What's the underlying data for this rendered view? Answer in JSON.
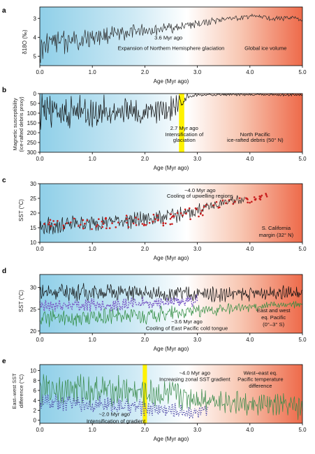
{
  "chart_data": [
    {
      "panel": "a",
      "type": "line",
      "title": "",
      "xlabel": "Age (Myr ago)",
      "ylabel": "δ18O (‰)",
      "xlim": [
        0,
        5
      ],
      "ylim": [
        5.5,
        2.4
      ],
      "x_ticks": [
        "0.0",
        "1.0",
        "2.0",
        "3.0",
        "4.0",
        "5.0"
      ],
      "y_ticks": [
        "3",
        "4",
        "5"
      ],
      "y_tick_values": [
        3,
        4,
        5
      ],
      "annotations": [
        {
          "text": "3.6 Myr ago",
          "x": 2.45,
          "y": 4.0
        },
        {
          "text": "Expansion of Northern Hemisphere glaciation",
          "x": 2.5,
          "y": 4.55
        },
        {
          "text": "Global ice volume",
          "x": 4.3,
          "y": 4.55
        }
      ],
      "series": [
        {
          "color": "#2a2a2a",
          "x": [
            0,
            0.2,
            0.4,
            0.6,
            0.8,
            1.0,
            1.2,
            1.4,
            1.6,
            1.8,
            2.0,
            2.2,
            2.4,
            2.6,
            2.8,
            3.0,
            3.2,
            3.4,
            3.6,
            3.8,
            4.0,
            4.2,
            4.4,
            4.6,
            4.8,
            5.0
          ],
          "y": [
            4.7,
            4.3,
            4.2,
            4.2,
            4.1,
            4.0,
            3.9,
            3.9,
            3.8,
            3.7,
            3.6,
            3.6,
            3.5,
            3.5,
            3.4,
            3.3,
            3.2,
            3.1,
            3.0,
            3.0,
            2.9,
            2.9,
            3.0,
            3.0,
            3.0,
            3.1
          ],
          "amplitude": [
            0.55,
            0.55,
            0.5,
            0.5,
            0.45,
            0.4,
            0.35,
            0.35,
            0.32,
            0.3,
            0.28,
            0.26,
            0.25,
            0.22,
            0.2,
            0.18,
            0.16,
            0.14,
            0.12,
            0.1,
            0.1,
            0.1,
            0.1,
            0.1,
            0.1,
            0.1
          ]
        }
      ]
    },
    {
      "panel": "b",
      "type": "line",
      "title": "",
      "xlabel": "Age (Myr ago)",
      "ylabel": "Magnetic susceptibility (ice-rafted debris proxy)",
      "xlim": [
        0,
        5
      ],
      "ylim": [
        300,
        0
      ],
      "x_ticks": [
        "0.0",
        "1.0",
        "2.0",
        "3.0",
        "4.0",
        "5.0"
      ],
      "y_ticks": [
        "0",
        "50",
        "100",
        "150",
        "200",
        "250",
        "300"
      ],
      "y_tick_values": [
        0,
        50,
        100,
        150,
        200,
        250,
        300
      ],
      "highlight_band": [
        2.65,
        2.75
      ],
      "annotations": [
        {
          "text": "2.7 Myr ago",
          "x": 2.75,
          "y": 175
        },
        {
          "text": "Intensification of",
          "x": 2.75,
          "y": 207
        },
        {
          "text": "glaciation",
          "x": 2.75,
          "y": 236
        },
        {
          "text": "North Pacific",
          "x": 4.1,
          "y": 207
        },
        {
          "text": "ice-rafted debris (50° N)",
          "x": 4.1,
          "y": 236
        }
      ],
      "series": [
        {
          "color": "#111111",
          "x": [
            0,
            0.25,
            0.5,
            0.75,
            1.0,
            1.25,
            1.5,
            1.75,
            2.0,
            2.25,
            2.5,
            2.7,
            2.8,
            3.0,
            3.5,
            4.0,
            4.5,
            5.0
          ],
          "y": [
            100,
            90,
            110,
            95,
            105,
            100,
            95,
            100,
            100,
            85,
            75,
            45,
            12,
            8,
            6,
            6,
            6,
            6
          ],
          "amplitude": [
            80,
            80,
            80,
            75,
            75,
            70,
            70,
            65,
            65,
            60,
            55,
            40,
            10,
            6,
            5,
            5,
            5,
            5
          ]
        }
      ]
    },
    {
      "panel": "c",
      "type": "line",
      "title": "",
      "xlabel": "Age (Myr ago)",
      "ylabel": "SST (°C)",
      "xlim": [
        0,
        5
      ],
      "ylim": [
        10,
        30
      ],
      "x_ticks": [
        "0.0",
        "1.0",
        "2.0",
        "3.0",
        "4.0",
        "5.0"
      ],
      "y_ticks": [
        "10",
        "15",
        "20",
        "25",
        "30"
      ],
      "y_tick_values": [
        10,
        15,
        20,
        25,
        30
      ],
      "annotations": [
        {
          "text": "~4.0 Myr ago",
          "x": 3.05,
          "y": 27.9
        },
        {
          "text": "Cooling of upwelling regions",
          "x": 3.05,
          "y": 25.9
        },
        {
          "text": "S. California",
          "x": 4.5,
          "y": 15.0
        },
        {
          "text": "margin (32° N)",
          "x": 4.5,
          "y": 12.6
        }
      ],
      "series": [
        {
          "color": "#1a1a1a",
          "x": [
            0,
            0.25,
            0.5,
            0.75,
            1.0,
            1.25,
            1.5,
            1.75,
            2.0,
            2.25,
            2.5,
            2.75,
            3.0,
            3.25,
            3.5,
            3.75,
            3.9
          ],
          "y": [
            15,
            15.5,
            16,
            16.5,
            16.5,
            17,
            17.5,
            17.5,
            18,
            18.5,
            19,
            19.5,
            21,
            22.5,
            23.5,
            24.5,
            25
          ],
          "amplitude": [
            2.5,
            2.5,
            2.5,
            2.3,
            2.3,
            2.2,
            2.2,
            2.2,
            2.0,
            2.0,
            2.0,
            2.0,
            1.8,
            1.5,
            1.5,
            1.3,
            1.2
          ]
        },
        {
          "color": "#c81e1e",
          "style": "points",
          "x": [
            0,
            0.5,
            1.0,
            1.5,
            2.0,
            2.5,
            3.0,
            3.5,
            4.0,
            4.1,
            4.2,
            4.3,
            4.35
          ],
          "y": [
            15.5,
            16,
            16.5,
            17,
            17.5,
            18,
            20.5,
            23,
            24.5,
            25,
            25.5,
            26,
            25.5
          ],
          "amplitude": [
            2,
            2,
            2,
            2,
            2,
            2.2,
            2,
            1.5,
            1.0,
            1.0,
            1.0,
            1.0,
            1.0
          ]
        }
      ]
    },
    {
      "panel": "d",
      "type": "line",
      "title": "",
      "xlabel": "Age (Myr ago)",
      "ylabel": "SST (°C)",
      "xlim": [
        0,
        5
      ],
      "ylim": [
        19.5,
        33
      ],
      "x_ticks": [
        "0.0",
        "1.0",
        "2.0",
        "3.0",
        "4.0",
        "5.0"
      ],
      "y_ticks": [
        "20",
        "25",
        "30"
      ],
      "y_tick_values": [
        20,
        25,
        30
      ],
      "annotations": [
        {
          "text": "~3.6 Myr ago",
          "x": 2.8,
          "y": 22.2
        },
        {
          "text": "Cooling of East Pacific cold tongue",
          "x": 2.8,
          "y": 20.7
        },
        {
          "text": "East and west",
          "x": 4.45,
          "y": 24.8
        },
        {
          "text": "eq. Pacific",
          "x": 4.45,
          "y": 23.2
        },
        {
          "text": "(0°–3° S)",
          "x": 4.45,
          "y": 21.6
        }
      ],
      "series": [
        {
          "color": "#111111",
          "x": [
            0,
            0.5,
            1.0,
            1.5,
            2.0,
            2.5,
            3.0,
            3.5,
            4.0,
            4.5,
            5.0
          ],
          "y": [
            29,
            29,
            29,
            29,
            28.5,
            28.5,
            28.5,
            28.5,
            28.5,
            29,
            28.5
          ],
          "amplitude": [
            1.6,
            1.6,
            1.6,
            1.5,
            1.5,
            1.5,
            1.4,
            1.4,
            1.3,
            1.3,
            1.3
          ]
        },
        {
          "color": "#7b5cc7",
          "style": "dashed",
          "x": [
            0,
            0.5,
            1.0,
            1.5,
            2.0,
            2.5,
            3.0
          ],
          "y": [
            25.5,
            26,
            26,
            26,
            26.5,
            26.5,
            27
          ],
          "amplitude": [
            1.2,
            1.2,
            1.2,
            1.1,
            1.1,
            1.0,
            1.0
          ]
        },
        {
          "color": "#2e8b3e",
          "x": [
            0,
            0.5,
            1.0,
            1.5,
            2.0,
            2.5,
            3.0,
            3.5,
            4.0,
            4.5,
            5.0
          ],
          "y": [
            23,
            23,
            23,
            23.5,
            23.5,
            24,
            24.5,
            25,
            25.5,
            26,
            26
          ],
          "amplitude": [
            1.6,
            1.6,
            1.6,
            1.5,
            1.5,
            1.4,
            1.2,
            1.0,
            0.8,
            0.8,
            0.8
          ]
        }
      ]
    },
    {
      "panel": "e",
      "type": "line",
      "title": "",
      "xlabel": "Age (Myr ago)",
      "ylabel": "East–west SST difference (°C)",
      "xlim": [
        0,
        5
      ],
      "ylim": [
        -0.6,
        11.2
      ],
      "x_ticks": [
        "0.0",
        "1.0",
        "2.0",
        "3.0",
        "4.0",
        "5.0"
      ],
      "y_ticks": [
        "0",
        "2",
        "4",
        "6",
        "8",
        "10"
      ],
      "y_tick_values": [
        0,
        2,
        4,
        6,
        8,
        10
      ],
      "highlight_band": [
        1.96,
        2.04
      ],
      "annotations": [
        {
          "text": "~4.0 Myr ago",
          "x": 2.95,
          "y": 9.6
        },
        {
          "text": "Increasing zonal SST gradient",
          "x": 2.95,
          "y": 8.3
        },
        {
          "text": "West–east eq.",
          "x": 4.2,
          "y": 9.6
        },
        {
          "text": "Pacific temperature",
          "x": 4.2,
          "y": 8.3
        },
        {
          "text": "difference",
          "x": 4.2,
          "y": 7.0
        },
        {
          "text": "~2.0 Myr ago",
          "x": 1.42,
          "y": 1.3
        },
        {
          "text": "Intensification of gradient",
          "x": 1.45,
          "y": -0.1
        }
      ],
      "series": [
        {
          "color": "#3a8a4a",
          "x": [
            0,
            0.5,
            1.0,
            1.5,
            2.0,
            2.5,
            3.0,
            3.5,
            4.0,
            4.5,
            5.0
          ],
          "y": [
            6,
            6.5,
            6,
            6,
            5.5,
            5,
            4.5,
            4,
            3,
            3,
            2.5
          ],
          "amplitude": [
            2.5,
            2.5,
            2.5,
            2.4,
            2.3,
            2.2,
            2.1,
            2.0,
            2.0,
            2.0,
            2.0
          ]
        },
        {
          "color": "#4f4aa8",
          "style": "dotted",
          "x": [
            0,
            0.5,
            1.0,
            1.5,
            2.0,
            2.5,
            3.0,
            3.2
          ],
          "y": [
            3.5,
            3.5,
            3.2,
            3,
            2.5,
            2,
            1.5,
            1.5
          ],
          "amplitude": [
            1.4,
            1.4,
            1.3,
            1.3,
            1.2,
            1.2,
            1.1,
            1.1
          ]
        }
      ]
    }
  ],
  "panel_letters": [
    "a",
    "b",
    "c",
    "d",
    "e"
  ],
  "x_axis_label": "Age (Myr ago)",
  "y_labels": {
    "a": "δ18O (‰)",
    "b_line1": "Magnetic susceptibility",
    "b_line2": "(ice-rafted debris proxy)",
    "c": "SST (°C)",
    "d": "SST (°C)",
    "e_line1": "East–west SST",
    "e_line2": "difference (°C)"
  },
  "colors": {
    "cold": "#8fcfe8",
    "warm": "#ee6a4a",
    "highlight": "#fff200"
  }
}
